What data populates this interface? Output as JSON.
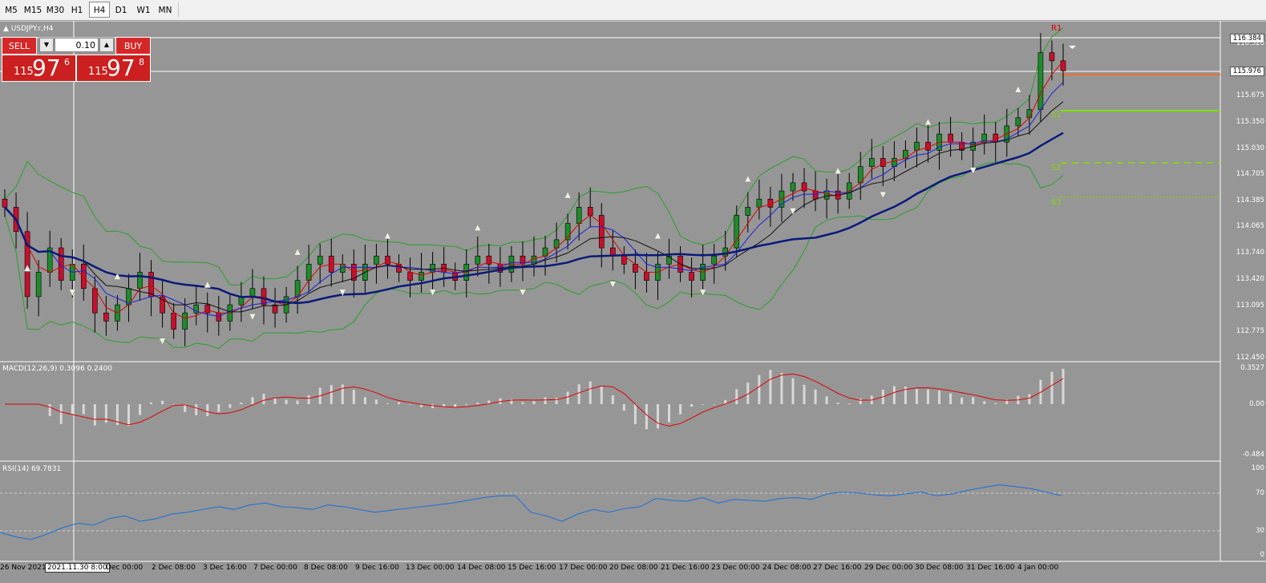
{
  "timeframes": [
    "M5",
    "M15",
    "M30",
    "H1",
    "H4",
    "D1",
    "W1",
    "MN"
  ],
  "active_timeframe": "H4",
  "symbol_title": "USDJPY.r,H4",
  "trade_panel": {
    "sell_label": "SELL",
    "buy_label": "BUY",
    "lot_value": "0.10",
    "sell_price": {
      "small": "115",
      "big": "97",
      "sup": "6"
    },
    "buy_price": {
      "small": "115",
      "big": "97",
      "sup": "8"
    }
  },
  "price_axis": [
    "116.384",
    "116.320",
    "115.976",
    "115.675",
    "115.350",
    "115.030",
    "114.705",
    "114.385",
    "114.065",
    "113.740",
    "113.420",
    "113.095",
    "112.775",
    "112.450"
  ],
  "pivots": [
    "R1",
    "S1",
    "S2",
    "S3"
  ],
  "macd": {
    "title": "MACD(12,26,9) 0.3096 0.2400",
    "axis": [
      "0.3527",
      "0.00",
      "-0.484"
    ]
  },
  "rsi": {
    "title": "RSI(14) 69.7831",
    "axis": [
      "100",
      "70",
      "30",
      "0"
    ]
  },
  "time_axis": {
    "labels": [
      "26 Nov 2021",
      "2021.11.30 8:00",
      "Dec 00:00",
      "2 Dec 08:00",
      "3 Dec 16:00",
      "7 Dec 00:00",
      "8 Dec 08:00",
      "9 Dec 16:00",
      "13 Dec 00:00",
      "14 Dec 08:00",
      "15 Dec 16:00",
      "17 Dec 00:00",
      "20 Dec 08:00",
      "21 Dec 16:00",
      "23 Dec 00:00",
      "24 Dec 08:00",
      "27 Dec 16:00",
      "29 Dec 00:00",
      "30 Dec 08:00",
      "31 Dec 16:00",
      "4 Jan 00:00"
    ]
  },
  "colors": {
    "background": "#969696",
    "bull_candle": "#1e8c2a",
    "bear_candle": "#c8102e",
    "ema_fast": "#e00000",
    "ema_mid": "#1e1ee0",
    "sma_slow": "#111111",
    "sma_long": "#0a1a7a",
    "bollinger": "#2aa02a",
    "macd_signal": "#e00000",
    "rsi_line": "#1a6fd8",
    "pivot_r": "#e00000",
    "pivot_s": "#7fe000",
    "pivot_line_orange": "#f07030"
  },
  "chart_data": {
    "type": "candlestick",
    "symbol": "USDJPY.r",
    "timeframe": "H4",
    "ylim": [
      112.45,
      116.384
    ],
    "last_price": 115.976,
    "closes": [
      114.3,
      114.0,
      113.2,
      113.5,
      113.8,
      113.4,
      113.6,
      113.3,
      113.0,
      112.9,
      113.1,
      113.3,
      113.5,
      113.2,
      113.0,
      112.8,
      113.0,
      113.1,
      113.0,
      112.9,
      113.1,
      113.2,
      113.3,
      113.1,
      113.0,
      113.2,
      113.4,
      113.6,
      113.7,
      113.5,
      113.6,
      113.4,
      113.6,
      113.7,
      113.6,
      113.5,
      113.4,
      113.5,
      113.6,
      113.5,
      113.4,
      113.6,
      113.7,
      113.6,
      113.5,
      113.7,
      113.6,
      113.7,
      113.8,
      113.9,
      114.1,
      114.3,
      114.2,
      113.8,
      113.7,
      113.6,
      113.5,
      113.4,
      113.6,
      113.7,
      113.5,
      113.4,
      113.6,
      113.7,
      113.8,
      114.2,
      114.3,
      114.4,
      114.3,
      114.5,
      114.6,
      114.5,
      114.4,
      114.5,
      114.4,
      114.6,
      114.8,
      114.9,
      114.8,
      114.9,
      115.0,
      115.1,
      115.0,
      115.2,
      115.1,
      115.0,
      115.1,
      115.2,
      115.1,
      115.3,
      115.4,
      115.5,
      116.2,
      116.1,
      115.976
    ],
    "rsi_values": [
      30,
      25,
      22,
      28,
      35,
      40,
      38,
      45,
      48,
      42,
      45,
      50,
      52,
      55,
      58,
      55,
      60,
      62,
      58,
      57,
      55,
      60,
      58,
      55,
      52,
      54,
      56,
      58,
      60,
      62,
      65,
      68,
      70,
      70,
      52,
      48,
      42,
      50,
      55,
      52,
      56,
      58,
      67,
      65,
      64,
      68,
      62,
      66,
      65,
      64,
      67,
      68,
      66,
      72,
      74,
      73,
      71,
      70,
      72,
      74,
      70,
      72,
      76,
      79,
      82,
      80,
      78,
      74,
      70
    ]
  }
}
